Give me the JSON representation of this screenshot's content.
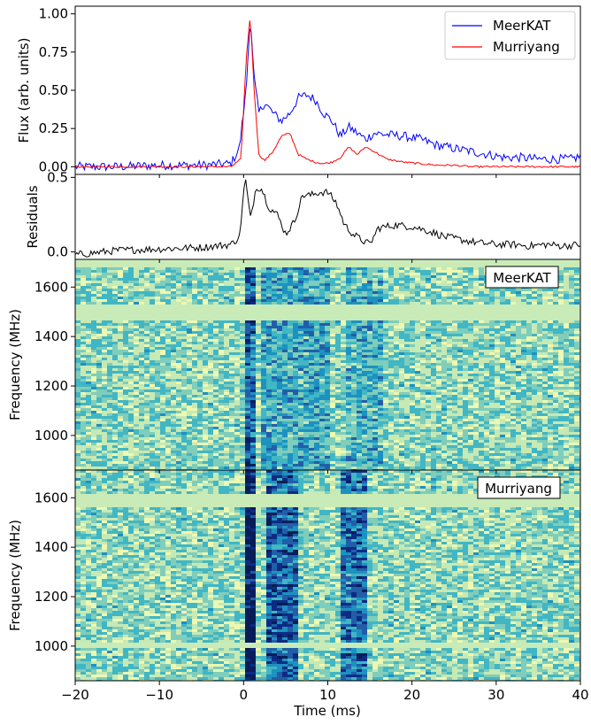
{
  "chart_data": [
    {
      "type": "line",
      "ylabel": "Flux (arb. units)",
      "xlim": [
        -20,
        40
      ],
      "ylim": [
        -0.05,
        1.05
      ],
      "yticks": [
        0.0,
        0.25,
        0.5,
        0.75,
        1.0
      ],
      "ytick_labels": [
        "0.00",
        "0.25",
        "0.50",
        "0.75",
        "1.00"
      ],
      "legend_position": "top-right",
      "series": [
        {
          "name": "MeerKAT",
          "color": "#0000ff",
          "x": [
            -20,
            -15,
            -10,
            -5,
            -1.5,
            -0.5,
            0.3,
            0.8,
            1.2,
            1.8,
            2.5,
            3.5,
            4.5,
            5.5,
            6.5,
            7.5,
            8.5,
            9.5,
            10.5,
            11.5,
            12.5,
            13.5,
            14.5,
            15.5,
            17,
            19,
            21,
            23,
            25,
            27,
            29,
            31,
            33,
            35,
            37,
            39,
            40
          ],
          "values": [
            0.0,
            0.0,
            0.01,
            0.01,
            0.02,
            0.12,
            0.5,
            1.0,
            0.6,
            0.35,
            0.42,
            0.35,
            0.3,
            0.35,
            0.45,
            0.47,
            0.44,
            0.35,
            0.3,
            0.2,
            0.26,
            0.22,
            0.18,
            0.22,
            0.21,
            0.2,
            0.18,
            0.14,
            0.12,
            0.1,
            0.08,
            0.06,
            0.06,
            0.05,
            0.05,
            0.05,
            0.07
          ]
        },
        {
          "name": "Murriyang",
          "color": "#ff0000",
          "x": [
            -20,
            -15,
            -10,
            -5,
            -1.5,
            -0.3,
            0.3,
            0.8,
            1.2,
            1.8,
            2.5,
            3.5,
            4.5,
            5.5,
            6.5,
            7.5,
            8.5,
            9.5,
            10.5,
            11.5,
            12.5,
            13.5,
            14.5,
            15.5,
            17,
            19,
            21,
            23,
            25,
            27,
            30,
            33,
            36,
            40
          ],
          "values": [
            0.0,
            0.0,
            0.0,
            0.0,
            0.0,
            0.05,
            0.7,
            1.0,
            0.55,
            0.08,
            0.04,
            0.1,
            0.2,
            0.22,
            0.08,
            0.05,
            0.03,
            0.02,
            0.03,
            0.06,
            0.13,
            0.08,
            0.13,
            0.1,
            0.05,
            0.03,
            0.02,
            0.01,
            0.01,
            0.0,
            0.0,
            0.0,
            0.0,
            0.0
          ]
        }
      ]
    },
    {
      "type": "line",
      "ylabel": "Residuals",
      "xlim": [
        -20,
        40
      ],
      "ylim": [
        -0.05,
        0.52
      ],
      "yticks": [
        0.0,
        0.5
      ],
      "ytick_labels": [
        "0.0",
        "0.5"
      ],
      "series": [
        {
          "color": "#000000",
          "x": [
            -20,
            -15,
            -10,
            -5,
            -1.5,
            -0.5,
            0.2,
            0.8,
            1.5,
            2.2,
            3,
            4,
            5,
            6,
            7,
            8,
            9,
            10,
            11,
            12,
            13,
            14,
            15,
            16,
            18,
            20,
            22,
            24,
            26,
            28,
            30,
            32,
            34,
            36,
            38,
            40
          ],
          "values": [
            -0.02,
            0.01,
            0.02,
            0.03,
            0.05,
            0.1,
            0.5,
            0.22,
            0.44,
            0.42,
            0.3,
            0.25,
            0.12,
            0.2,
            0.38,
            0.38,
            0.4,
            0.4,
            0.33,
            0.18,
            0.12,
            0.08,
            0.05,
            0.16,
            0.18,
            0.17,
            0.14,
            0.1,
            0.08,
            0.06,
            0.05,
            0.05,
            0.04,
            0.05,
            0.04,
            0.05
          ]
        }
      ]
    },
    {
      "type": "heatmap",
      "label": "MeerKAT",
      "ylabel": "Frequency (MHz)",
      "xlim": [
        -20,
        40
      ],
      "ylim": [
        860,
        1712
      ],
      "yticks": [
        1000,
        1200,
        1400,
        1600
      ],
      "ytick_labels": [
        "1000",
        "1200",
        "1400",
        "1600"
      ],
      "burst_windows_ms": [
        [
          -0.5,
          1.5
        ],
        [
          2,
          10
        ],
        [
          12,
          16
        ]
      ],
      "flagged_bands_mhz": [
        [
          1470,
          1530
        ],
        [
          1680,
          1712
        ]
      ],
      "colormap": "YlGnBu"
    },
    {
      "type": "heatmap",
      "label": "Murriyang",
      "ylabel": "Frequency (MHz)",
      "xlabel": "Time (ms)",
      "xlim": [
        -20,
        40
      ],
      "xticks": [
        -20,
        -10,
        0,
        10,
        20,
        30,
        40
      ],
      "xtick_labels": [
        "−20",
        "−10",
        "0",
        "10",
        "20",
        "30",
        "40"
      ],
      "ylim": [
        860,
        1712
      ],
      "yticks": [
        1000,
        1200,
        1400,
        1600
      ],
      "ytick_labels": [
        "1000",
        "1200",
        "1400",
        "1600"
      ],
      "burst_windows_ms": [
        [
          -0.5,
          1.5
        ],
        [
          2.5,
          6
        ],
        [
          11,
          14.5
        ]
      ],
      "flagged_bands_mhz": [
        [
          1570,
          1620
        ],
        [
          1000,
          1015
        ]
      ],
      "colormap": "YlGnBu"
    }
  ]
}
